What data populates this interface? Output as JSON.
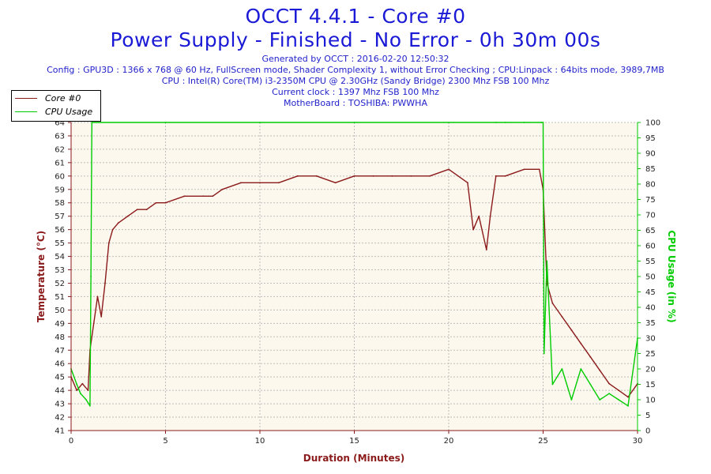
{
  "header": {
    "title": "OCCT 4.4.1 - Core #0",
    "subtitle": "Power Supply - Finished - No Error - 0h 30m 00s",
    "info_lines": [
      "Generated by OCCT : 2016-02-20 12:50:32",
      "Config : GPU3D : 1366 x 768 @ 60 Hz, FullScreen mode, Shader Complexity 1, without Error Checking ; CPU:Linpack : 64bits mode, 3989,7MB",
      "CPU : Intel(R) Core(TM) i3-2350M CPU @ 2.30GHz (Sandy Bridge) 2300 Mhz FSB 100 Mhz",
      "Current clock : 1397 Mhz FSB 100 Mhz",
      "MotherBoard : TOSHIBA: PWWHA"
    ]
  },
  "legend": [
    {
      "label": "Core #0",
      "color": "#8b1a1a"
    },
    {
      "label": "CPU Usage",
      "color": "#00cc00"
    }
  ],
  "chart_data": {
    "type": "line",
    "xlabel": "Duration (Minutes)",
    "ylabel_left": "Temperature (°C)",
    "ylabel_right": "CPU Usage (in %)",
    "xlim": [
      0,
      30
    ],
    "ylim_left": [
      41,
      64
    ],
    "ylim_right": [
      0,
      100
    ],
    "x_ticks": [
      0,
      5,
      10,
      15,
      20,
      25,
      30
    ],
    "y_left_ticks": [
      41,
      42,
      43,
      44,
      45,
      46,
      47,
      48,
      49,
      50,
      51,
      52,
      53,
      54,
      55,
      56,
      57,
      58,
      59,
      60,
      61,
      62,
      63,
      64
    ],
    "y_right_ticks": [
      0,
      5,
      10,
      15,
      20,
      25,
      30,
      35,
      40,
      45,
      50,
      55,
      60,
      65,
      70,
      75,
      80,
      85,
      90,
      95,
      100
    ],
    "grid": true,
    "legend_position": "top-left",
    "colors": {
      "temperature": "#8b1a1a",
      "cpu": "#00cc00",
      "axis_left": "#8b1a1a",
      "axis_right": "#00cc00",
      "plot_bg": "#fdf8ee"
    },
    "series": [
      {
        "name": "Core #0",
        "axis": "left",
        "x": [
          0,
          0.3,
          0.6,
          0.9,
          1.0,
          1.2,
          1.4,
          1.6,
          1.8,
          2.0,
          2.2,
          2.5,
          3.0,
          3.5,
          4.0,
          4.5,
          5.0,
          6.0,
          7.0,
          7.5,
          8.0,
          9.0,
          10.0,
          11.0,
          12.0,
          13.0,
          14.0,
          15.0,
          16.0,
          17.0,
          18.0,
          19.0,
          20.0,
          21.0,
          21.3,
          21.6,
          22.0,
          22.2,
          22.5,
          23.0,
          24.0,
          24.8,
          25.0,
          25.2,
          25.5,
          26.0,
          26.5,
          27.0,
          27.5,
          28.0,
          28.5,
          29.0,
          29.5,
          30.0
        ],
        "values": [
          45.0,
          44.0,
          44.5,
          44.0,
          47.0,
          49.0,
          51.0,
          49.5,
          52.0,
          55.0,
          56.0,
          56.5,
          57.0,
          57.5,
          57.5,
          58.0,
          58.0,
          58.5,
          58.5,
          58.5,
          59.0,
          59.5,
          59.5,
          59.5,
          60.0,
          60.0,
          59.5,
          60.0,
          60.0,
          60.0,
          60.0,
          60.0,
          60.5,
          59.5,
          56.0,
          57.0,
          54.5,
          57.0,
          60.0,
          60.0,
          60.5,
          60.5,
          59.0,
          52.0,
          50.5,
          49.5,
          48.5,
          47.5,
          46.5,
          45.5,
          44.5,
          44.0,
          43.5,
          44.5
        ]
      },
      {
        "name": "CPU Usage",
        "axis": "right",
        "x": [
          0,
          0.3,
          0.5,
          0.8,
          1.0,
          1.05,
          1.1,
          5,
          10,
          15,
          20,
          22.5,
          23,
          24,
          24.9,
          25.0,
          25.05,
          25.2,
          25.5,
          26.0,
          26.5,
          27.0,
          27.5,
          28.0,
          28.5,
          29.0,
          29.5,
          30.0
        ],
        "values": [
          20,
          15,
          12,
          10,
          8,
          50,
          100,
          100,
          100,
          100,
          100,
          100,
          100,
          100,
          100,
          100,
          25,
          55,
          15,
          20,
          10,
          20,
          15,
          10,
          12,
          10,
          8,
          30
        ]
      }
    ]
  }
}
